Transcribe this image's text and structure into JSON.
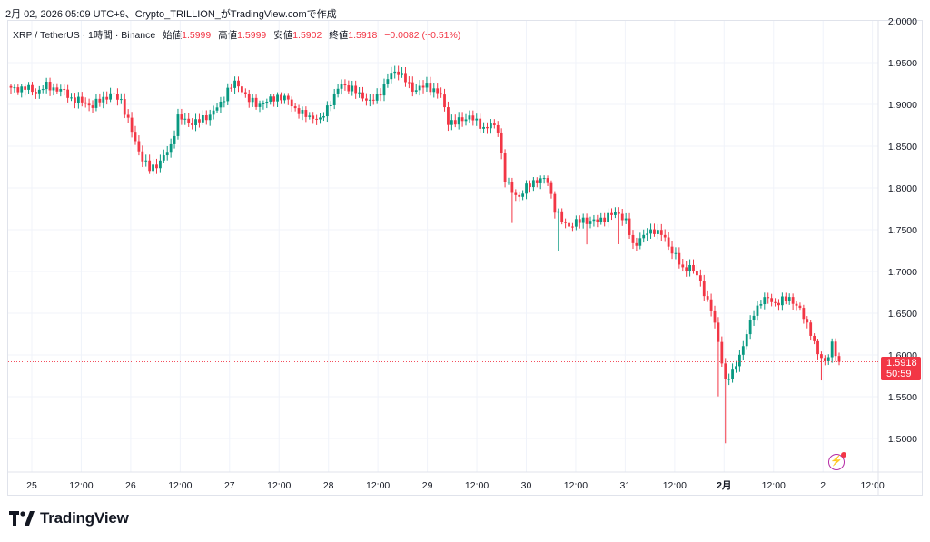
{
  "header": {
    "text": "2月 02, 2026 05:09 UTC+9、Crypto_TRILLION_がTradingView.comで作成"
  },
  "legend": {
    "symbol": "XRP / TetherUS · 1時間 · Binance",
    "open_label": "始値",
    "open": "1.5999",
    "high_label": "高値",
    "high": "1.5999",
    "low_label": "安値",
    "low": "1.5902",
    "close_label": "終値",
    "close": "1.5918",
    "change": "−0.0082 (−0.51%)"
  },
  "price_label": {
    "price": "1.5918",
    "countdown": "50:59"
  },
  "brand": {
    "name": "TradingView"
  },
  "colors": {
    "up": "#089981",
    "down": "#f23645",
    "grid": "#f0f3fa",
    "axis_text": "#131722",
    "last_line": "#f23645"
  },
  "chart_data": {
    "type": "candlestick",
    "title": "",
    "xlabel": "",
    "ylabel": "",
    "ylim": [
      1.46,
      2.0
    ],
    "y_ticks": [
      "1.5000",
      "1.5500",
      "1.6000",
      "1.6500",
      "1.7000",
      "1.7500",
      "1.8000",
      "1.8500",
      "1.9000",
      "1.9500",
      "2.0000"
    ],
    "x_ticks": [
      "25",
      "12:00",
      "26",
      "12:00",
      "27",
      "12:00",
      "28",
      "12:00",
      "29",
      "12:00",
      "30",
      "12:00",
      "31",
      "12:00",
      "2月",
      "12:00",
      "2",
      "12:00"
    ],
    "bold_ticks": [
      "2月"
    ],
    "last_price": 1.5918,
    "grid": true,
    "keypoints": [
      [
        0,
        1.918
      ],
      [
        4,
        1.92
      ],
      [
        7,
        1.915
      ],
      [
        10,
        1.922
      ],
      [
        13,
        1.918
      ],
      [
        15,
        1.915
      ],
      [
        17,
        1.907
      ],
      [
        20,
        1.903
      ],
      [
        23,
        1.898
      ],
      [
        25,
        1.905
      ],
      [
        28,
        1.912
      ],
      [
        31,
        1.905
      ],
      [
        33,
        1.88
      ],
      [
        35,
        1.855
      ],
      [
        37,
        1.835
      ],
      [
        39,
        1.822
      ],
      [
        41,
        1.828
      ],
      [
        43,
        1.837
      ],
      [
        45,
        1.85
      ],
      [
        47,
        1.885
      ],
      [
        50,
        1.878
      ],
      [
        53,
        1.88
      ],
      [
        56,
        1.888
      ],
      [
        59,
        1.9
      ],
      [
        61,
        1.918
      ],
      [
        63,
        1.925
      ],
      [
        65,
        1.918
      ],
      [
        67,
        1.905
      ],
      [
        69,
        1.9
      ],
      [
        72,
        1.903
      ],
      [
        75,
        1.91
      ],
      [
        78,
        1.905
      ],
      [
        80,
        1.895
      ],
      [
        82,
        1.888
      ],
      [
        85,
        1.885
      ],
      [
        87,
        1.88
      ],
      [
        89,
        1.897
      ],
      [
        91,
        1.91
      ],
      [
        93,
        1.925
      ],
      [
        95,
        1.92
      ],
      [
        97,
        1.915
      ],
      [
        99,
        1.91
      ],
      [
        101,
        1.902
      ],
      [
        103,
        1.91
      ],
      [
        105,
        1.922
      ],
      [
        107,
        1.937
      ],
      [
        109,
        1.94
      ],
      [
        111,
        1.928
      ],
      [
        113,
        1.918
      ],
      [
        115,
        1.92
      ],
      [
        117,
        1.922
      ],
      [
        119,
        1.918
      ],
      [
        121,
        1.91
      ],
      [
        123,
        1.88
      ],
      [
        125,
        1.878
      ],
      [
        127,
        1.882
      ],
      [
        129,
        1.886
      ],
      [
        131,
        1.878
      ],
      [
        133,
        1.872
      ],
      [
        135,
        1.875
      ],
      [
        137,
        1.87
      ],
      [
        139,
        1.81
      ],
      [
        141,
        1.795
      ],
      [
        143,
        1.79
      ],
      [
        145,
        1.8
      ],
      [
        147,
        1.808
      ],
      [
        149,
        1.81
      ],
      [
        151,
        1.808
      ],
      [
        153,
        1.775
      ],
      [
        155,
        1.76
      ],
      [
        157,
        1.755
      ],
      [
        159,
        1.758
      ],
      [
        161,
        1.762
      ],
      [
        163,
        1.76
      ],
      [
        165,
        1.76
      ],
      [
        167,
        1.765
      ],
      [
        169,
        1.768
      ],
      [
        171,
        1.77
      ],
      [
        173,
        1.76
      ],
      [
        175,
        1.73
      ],
      [
        177,
        1.74
      ],
      [
        179,
        1.745
      ],
      [
        181,
        1.75
      ],
      [
        183,
        1.745
      ],
      [
        185,
        1.73
      ],
      [
        187,
        1.72
      ],
      [
        189,
        1.7
      ],
      [
        191,
        1.708
      ],
      [
        193,
        1.695
      ],
      [
        195,
        1.675
      ],
      [
        197,
        1.655
      ],
      [
        199,
        1.615
      ],
      [
        201,
        1.57
      ],
      [
        203,
        1.578
      ],
      [
        205,
        1.6
      ],
      [
        207,
        1.625
      ],
      [
        209,
        1.65
      ],
      [
        211,
        1.665
      ],
      [
        213,
        1.667
      ],
      [
        215,
        1.662
      ],
      [
        217,
        1.665
      ],
      [
        219,
        1.668
      ],
      [
        221,
        1.66
      ],
      [
        223,
        1.645
      ],
      [
        225,
        1.628
      ],
      [
        227,
        1.6
      ],
      [
        229,
        1.592
      ],
      [
        231,
        1.612
      ],
      [
        232,
        1.6
      ],
      [
        233,
        1.5918
      ]
    ],
    "x_label_positions_note": ""
  }
}
